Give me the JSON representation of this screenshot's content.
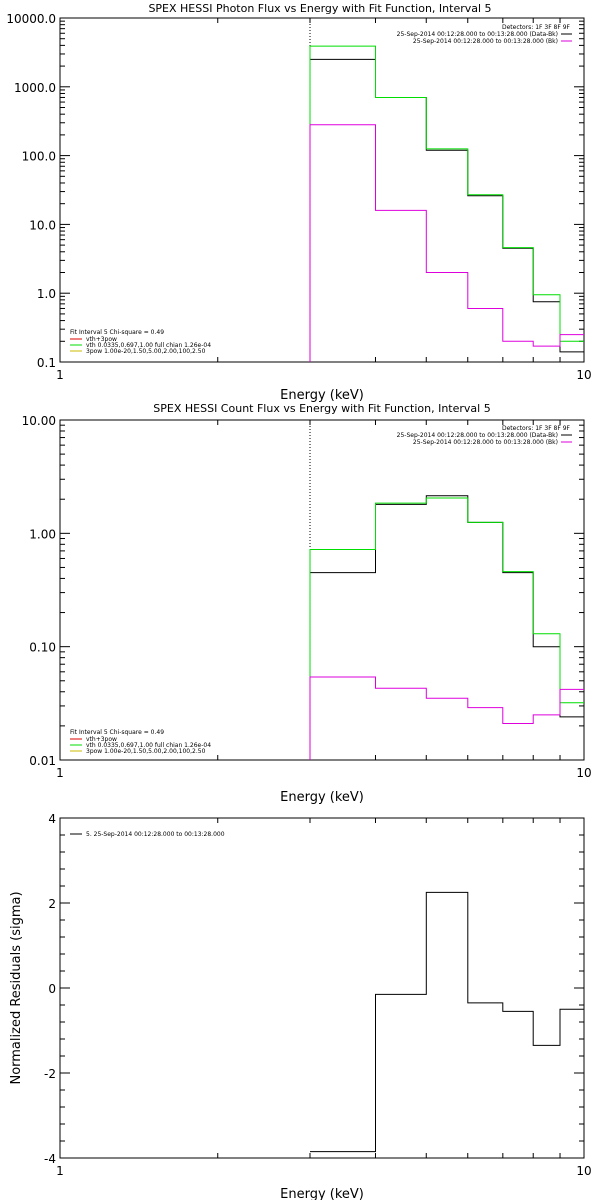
{
  "colors": {
    "black": "#000000",
    "green": "#00dd00",
    "magenta": "#dd00dd",
    "red": "#dd0000",
    "yellow": "#ccbb00"
  },
  "chart_data": [
    {
      "type": "line",
      "title": "SPEX HESSI Photon Flux vs Energy with Fit Function, Interval 5",
      "xlabel": "Energy (keV)",
      "ylabel": "",
      "xscale": "log",
      "yscale": "log",
      "xlim": [
        1,
        10
      ],
      "ylim": [
        0.1,
        10000
      ],
      "xticks": [
        "1",
        "10"
      ],
      "yticks": [
        "0.1",
        "1.0",
        "10.0",
        "100.0",
        "1000.0",
        "10000.0"
      ],
      "edges": [
        3.0,
        4.0,
        5.0,
        6.0,
        7.0,
        8.0,
        9.0,
        10.0
      ],
      "series": [
        {
          "name": "25-Sep-2014 00:12:28.000 to 00:13:28.000 (Data-Bk)",
          "color": "#000000",
          "values": [
            2500,
            700,
            120,
            26,
            4.5,
            0.75,
            0.14
          ]
        },
        {
          "name": "vth+3pow",
          "color": "#00dd00",
          "values": [
            3900,
            700,
            125,
            27,
            4.6,
            0.95,
            0.2
          ]
        },
        {
          "name": "25-Sep-2014 00:12:28.000 to 00:13:28.000 (Bk)",
          "color": "#dd00dd",
          "values": [
            280,
            16,
            2,
            0.6,
            0.2,
            0.17,
            0.25
          ]
        }
      ],
      "vline_x": 3.0,
      "legend_top": {
        "header": "Detectors: 1F 3F 8F 9F",
        "entries": [
          "25-Sep-2014 00:12:28.000 to 00:13:28.000 (Data-Bk)",
          "25-Sep-2014 00:12:28.000 to 00:13:28.000 (Bk)"
        ]
      },
      "legend_bottom": {
        "header": "Fit Interval 5   Chi-square = 0.49",
        "entries": [
          "vth+3pow",
          "vth 0.0335,0.697,1.00  full chian 1.26e-04",
          "3pow 1.00e-20,1.50,5.00,2.00,100,2.50"
        ]
      }
    },
    {
      "type": "line",
      "title": "SPEX HESSI Count Flux vs Energy with Fit Function, Interval 5",
      "xlabel": "Energy (keV)",
      "ylabel": "",
      "xscale": "log",
      "yscale": "log",
      "xlim": [
        1,
        10
      ],
      "ylim": [
        0.01,
        10
      ],
      "xticks": [
        "1",
        "10"
      ],
      "yticks": [
        "0.01",
        "0.10",
        "1.00",
        "10.00"
      ],
      "edges": [
        3.0,
        4.0,
        5.0,
        6.0,
        7.0,
        8.0,
        9.0,
        10.0
      ],
      "series": [
        {
          "name": "25-Sep-2014 00:12:28.000 to 00:13:28.000 (Data-Bk)",
          "color": "#000000",
          "values": [
            0.45,
            1.8,
            2.15,
            1.25,
            0.45,
            0.1,
            0.024
          ]
        },
        {
          "name": "vth+3pow",
          "color": "#00dd00",
          "values": [
            0.72,
            1.85,
            2.05,
            1.25,
            0.46,
            0.13,
            0.032
          ]
        },
        {
          "name": "25-Sep-2014 00:12:28.000 to 00:13:28.000 (Bk)",
          "color": "#dd00dd",
          "values": [
            0.054,
            0.043,
            0.035,
            0.029,
            0.021,
            0.025,
            0.042
          ]
        }
      ],
      "vline_x": 3.0,
      "legend_top": {
        "header": "Detectors: 1F 3F 8F 9F",
        "entries": [
          "25-Sep-2014 00:12:28.000 to 00:13:28.000 (Data-Bk)",
          "25-Sep-2014 00:12:28.000 to 00:13:28.000 (Bk)"
        ]
      },
      "legend_bottom": {
        "header": "Fit Interval 5   Chi-square = 0.49",
        "entries": [
          "vth+3pow",
          "vth 0.0335,0.697,1.00  full chian 1.26e-04",
          "3pow 1.00e-20,1.50,5.00,2.00,100,2.50"
        ]
      }
    },
    {
      "type": "line",
      "title": "",
      "xlabel": "Energy (keV)",
      "ylabel": "Normalized Residuals (sigma)",
      "xscale": "log",
      "yscale": "linear",
      "xlim": [
        1,
        10
      ],
      "ylim": [
        -4,
        4
      ],
      "xticks": [
        "1",
        "10"
      ],
      "yticks": [
        "-4",
        "-2",
        "0",
        "2",
        "4"
      ],
      "edges": [
        3.0,
        4.0,
        5.0,
        6.0,
        7.0,
        8.0,
        9.0,
        10.0
      ],
      "series": [
        {
          "name": "5. 25-Sep-2014 00:12:28.000 to 00:13:28.000",
          "color": "#000000",
          "values": [
            -3.85,
            -0.15,
            2.25,
            -0.35,
            -0.55,
            -1.35,
            -0.5
          ]
        }
      ],
      "legend_entry": "5. 25-Sep-2014 00:12:28.000 to 00:13:28.000"
    }
  ]
}
